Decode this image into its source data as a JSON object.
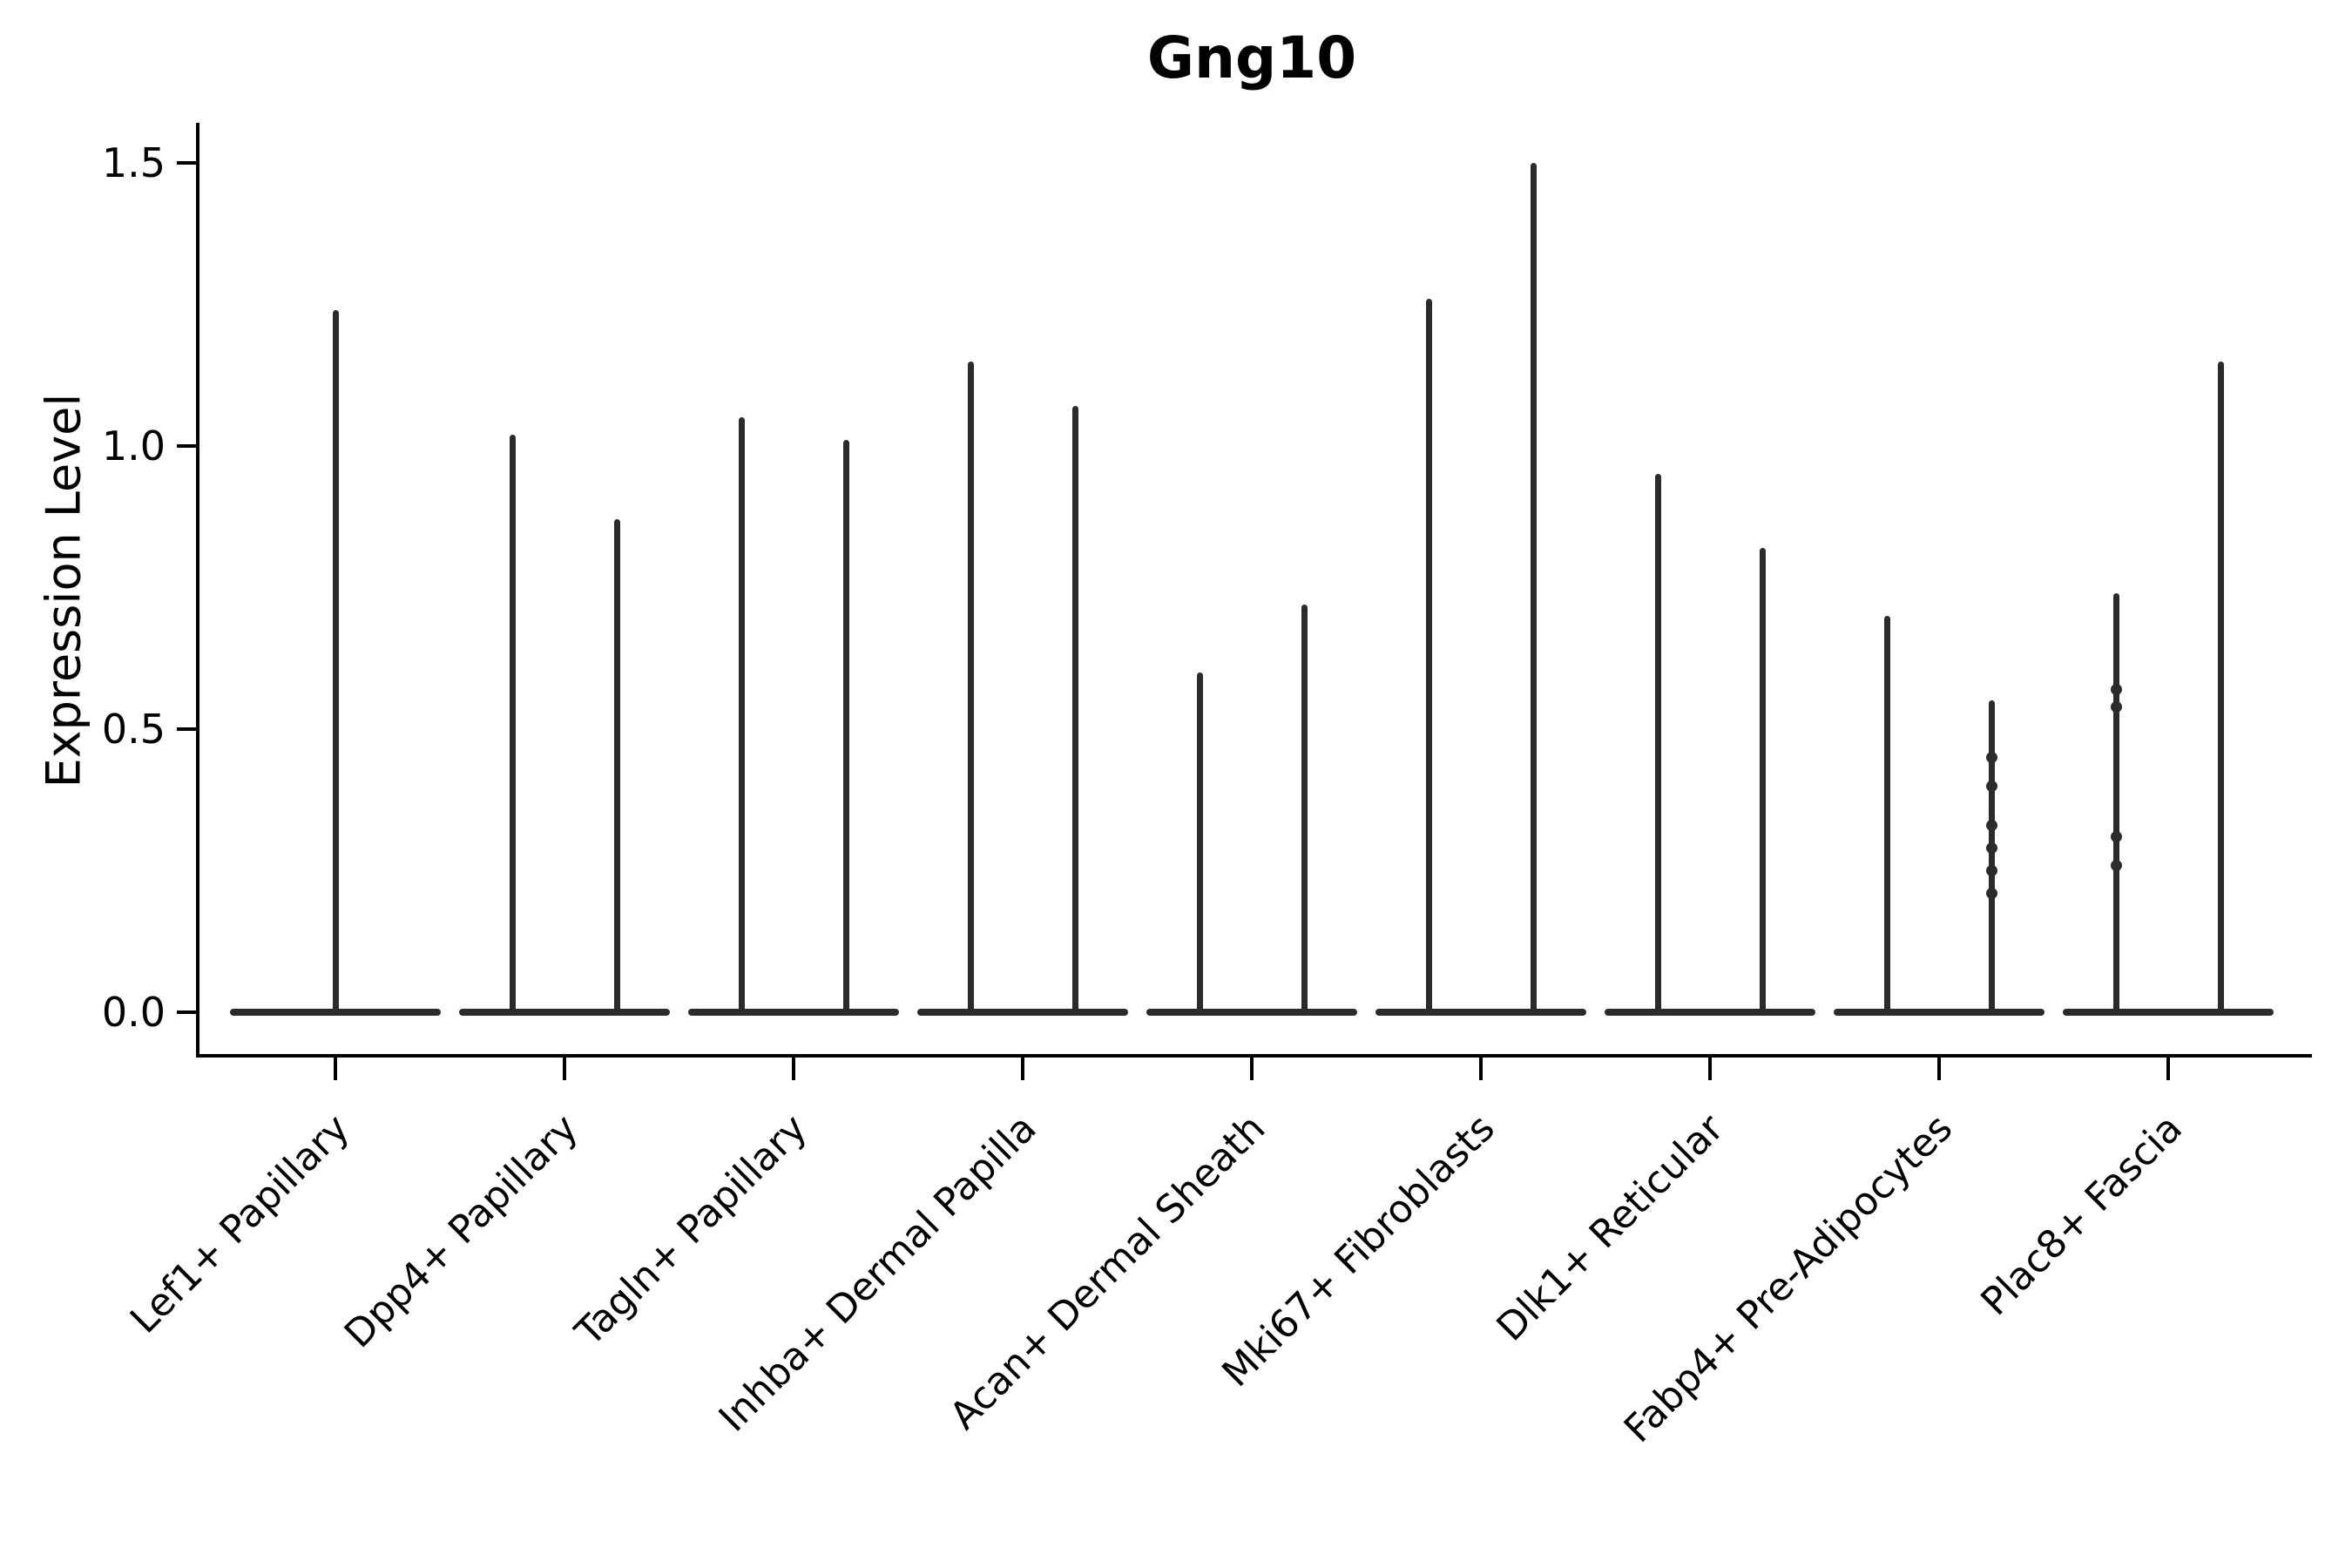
{
  "figure_title": "Gng10",
  "colors": {
    "violin": "#2b2b2b",
    "axis": "#000000",
    "background": "#ffffff"
  },
  "chart_data": {
    "type": "violin",
    "title": "Gng10",
    "xlabel": "",
    "ylabel": "Expression Level",
    "ylim": [
      0,
      1.55
    ],
    "yticks": [
      0.0,
      0.5,
      1.0,
      1.5
    ],
    "grid": false,
    "legend": "none",
    "categories": [
      "Lef1+ Papillary",
      "Dpp4+ Papillary",
      "Tagln+ Papillary",
      "Inhba+ Dermal Papilla",
      "Acan+ Dermal Sheath",
      "Mki67+ Fibroblasts",
      "Dlk1+ Reticular",
      "Fabp4+ Pre-Adipocytes",
      "Plac8+ Fascia"
    ],
    "violins": [
      {
        "category": "Lef1+ Papillary",
        "groups": [
          {
            "max": 1.24,
            "points": []
          }
        ]
      },
      {
        "category": "Dpp4+ Papillary",
        "groups": [
          {
            "max": 1.02,
            "points": []
          },
          {
            "max": 0.87,
            "points": []
          }
        ]
      },
      {
        "category": "Tagln+ Papillary",
        "groups": [
          {
            "max": 1.05,
            "points": []
          },
          {
            "max": 1.01,
            "points": []
          }
        ]
      },
      {
        "category": "Inhba+ Dermal Papilla",
        "groups": [
          {
            "max": 1.15,
            "points": []
          },
          {
            "max": 1.07,
            "points": []
          }
        ]
      },
      {
        "category": "Acan+ Dermal Sheath",
        "groups": [
          {
            "max": 0.6,
            "points": []
          },
          {
            "max": 0.72,
            "points": []
          }
        ]
      },
      {
        "category": "Mki67+ Fibroblasts",
        "groups": [
          {
            "max": 1.26,
            "points": []
          },
          {
            "max": 1.5,
            "points": []
          }
        ]
      },
      {
        "category": "Dlk1+ Reticular",
        "groups": [
          {
            "max": 0.95,
            "points": []
          },
          {
            "max": 0.82,
            "points": []
          }
        ]
      },
      {
        "category": "Fabp4+ Pre-Adipocytes",
        "groups": [
          {
            "max": 0.7,
            "points": []
          },
          {
            "max": 0.55,
            "points": [
              0.45,
              0.4,
              0.33,
              0.29,
              0.25,
              0.21
            ]
          }
        ]
      },
      {
        "category": "Plac8+ Fascia",
        "groups": [
          {
            "max": 0.74,
            "points": [
              0.57,
              0.54,
              0.31,
              0.26
            ]
          },
          {
            "max": 1.15,
            "points": []
          }
        ]
      }
    ],
    "note": "Single-cell expression violin plot: each violin is a wide flat disc at 0 expression with a thin vertical tail rising to its maximum expression value."
  }
}
